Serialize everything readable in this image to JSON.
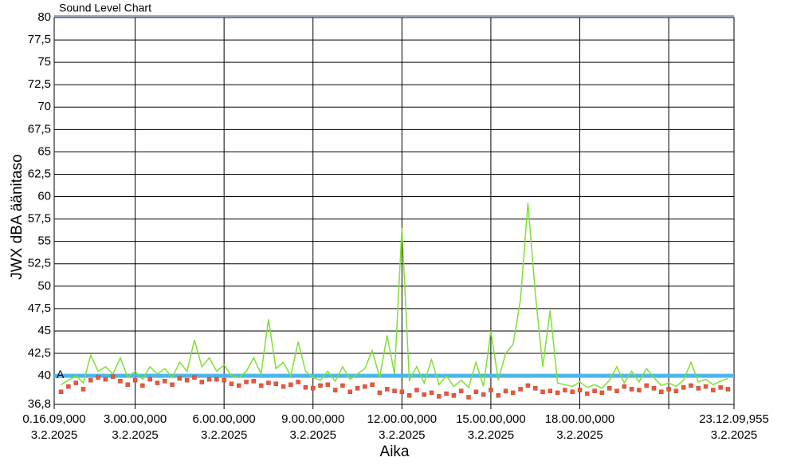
{
  "chart_data": {
    "type": "line",
    "title": "Sound Level Chart",
    "y_label": "JWX dBA äänitaso",
    "x_label": "Aika",
    "xlim": [
      0.26917,
      23.20277
    ],
    "xticks": [
      {
        "value": 0.26917,
        "label": "0.16.09,000",
        "date": "3.2.2025"
      },
      {
        "value": 3,
        "label": "3.00.00,000",
        "date": "3.2.2025"
      },
      {
        "value": 6,
        "label": "6.00.00,000",
        "date": "3.2.2025"
      },
      {
        "value": 9,
        "label": "9.00.00,000",
        "date": "3.2.2025"
      },
      {
        "value": 12,
        "label": "12.00.00,000",
        "date": "3.2.2025"
      },
      {
        "value": 15,
        "label": "15.00.00,000",
        "date": "3.2.2025"
      },
      {
        "value": 18,
        "label": "18.00.00,000",
        "date": "3.2.2025"
      },
      {
        "value": 21
      },
      {
        "value": 23.20277,
        "label": "23.12.09,955",
        "date": "3.2.2025"
      }
    ],
    "ylim": [
      36.8,
      80
    ],
    "yticks": [
      {
        "value": 36.8,
        "label": "36,8"
      },
      40,
      {
        "value": 42.5,
        "label": "42,5"
      },
      45,
      {
        "value": 47.5,
        "label": "47,5"
      },
      50,
      {
        "value": 52.5,
        "label": "52,5"
      },
      55,
      {
        "value": 57.5,
        "label": "57,5"
      },
      60,
      {
        "value": 62.5,
        "label": "62,5"
      },
      65,
      {
        "value": 67.5,
        "label": "67,5"
      },
      70,
      {
        "value": 72.5,
        "label": "72,5"
      },
      75,
      {
        "value": 77.5,
        "label": "77,5"
      },
      80
    ],
    "grid": true,
    "limit": {
      "value": 40,
      "label": "A",
      "color": "#4cb6ea"
    },
    "x": [
      0.5,
      0.75,
      1,
      1.25,
      1.5,
      1.75,
      2,
      2.25,
      2.5,
      2.75,
      3,
      3.25,
      3.5,
      3.75,
      4,
      4.25,
      4.5,
      4.75,
      5,
      5.25,
      5.5,
      5.75,
      6,
      6.25,
      6.5,
      6.75,
      7,
      7.25,
      7.5,
      7.75,
      8,
      8.25,
      8.5,
      8.75,
      9,
      9.25,
      9.5,
      9.75,
      10,
      10.25,
      10.5,
      10.75,
      11,
      11.25,
      11.5,
      11.75,
      12,
      12.25,
      12.5,
      12.75,
      13,
      13.25,
      13.5,
      13.75,
      14,
      14.25,
      14.5,
      14.75,
      15,
      15.25,
      15.5,
      15.75,
      16,
      16.25,
      16.5,
      16.75,
      17,
      17.25,
      17.5,
      17.75,
      18,
      18.25,
      18.5,
      18.75,
      19,
      19.25,
      19.5,
      19.75,
      20,
      20.25,
      20.5,
      20.75,
      21,
      21.25,
      21.5,
      21.75,
      22,
      22.25,
      22.5,
      22.75,
      23
    ],
    "series": [
      {
        "style": "line",
        "color": "#7fe030",
        "values": [
          39,
          39.5,
          40,
          39.2,
          42.3,
          40.5,
          41,
          40.2,
          42,
          39.8,
          40.5,
          39.6,
          41,
          40.2,
          40.8,
          39.8,
          41.5,
          40.5,
          44,
          41,
          42,
          40.5,
          41.2,
          40,
          39.8,
          40.5,
          42,
          40.2,
          46.3,
          40.8,
          41.5,
          40,
          43.8,
          40.5,
          39.8,
          39.5,
          40.5,
          39.4,
          41,
          39.6,
          40.2,
          40.8,
          42.8,
          39.8,
          44.5,
          40.2,
          56.5,
          39.5,
          41,
          39.2,
          41.8,
          39,
          40,
          38.8,
          39.5,
          38.7,
          41.5,
          38.8,
          45,
          39.5,
          42.5,
          43.5,
          48.5,
          59.3,
          49.2,
          41,
          47.3,
          39.2,
          39,
          38.8,
          39.3,
          38.7,
          39,
          38.6,
          39.5,
          41,
          39.2,
          40.5,
          39.3,
          40.8,
          39.8,
          38.9,
          39.2,
          38.8,
          39.5,
          41.5,
          39.3,
          39.6,
          39,
          39.4,
          39.7
        ]
      },
      {
        "style": "markers",
        "color": "#e8583a",
        "values": [
          38.2,
          38.8,
          39.2,
          38.5,
          39.5,
          39.8,
          39.6,
          39.9,
          39.4,
          39,
          39.5,
          38.9,
          39.6,
          39.2,
          39.4,
          39,
          39.7,
          39.5,
          39.8,
          39.3,
          39.6,
          39.6,
          39.5,
          39.1,
          38.9,
          39.3,
          39.4,
          38.9,
          39.2,
          39.1,
          38.8,
          39,
          39.3,
          38.7,
          38.6,
          38.9,
          39,
          38.4,
          38.9,
          38.2,
          38.6,
          38.8,
          39,
          38.1,
          38.5,
          38.3,
          38.2,
          37.8,
          38.4,
          37.9,
          38.1,
          37.7,
          38,
          37.8,
          38.3,
          37.6,
          38.2,
          37.9,
          38.4,
          37.8,
          38.3,
          38.1,
          38.5,
          38.9,
          38.6,
          38.2,
          38.3,
          38.1,
          38.4,
          38.2,
          38.4,
          38,
          38.3,
          38.1,
          38.6,
          38.3,
          38.8,
          38.5,
          38.4,
          38.9,
          38.6,
          38.2,
          38.5,
          38.3,
          38.7,
          38.9,
          38.6,
          38.8,
          38.4,
          38.7,
          38.5
        ]
      }
    ]
  }
}
